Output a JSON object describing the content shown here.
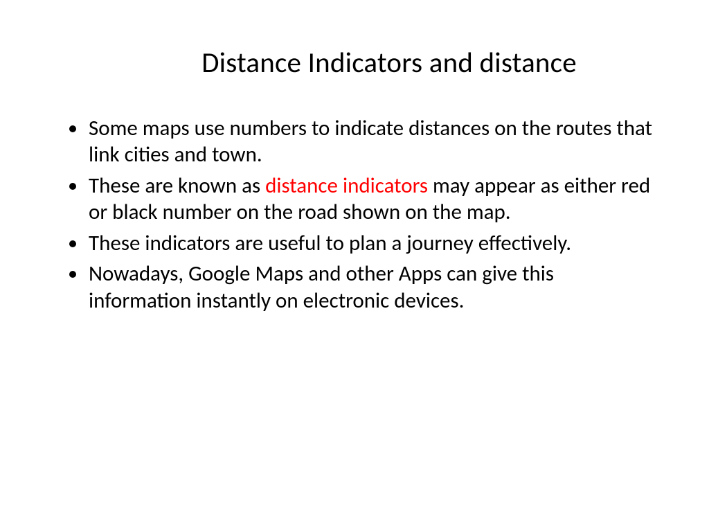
{
  "slide": {
    "title": "Distance Indicators and distance",
    "title_fontsize": 41,
    "title_color": "#000000",
    "background_color": "#ffffff",
    "body_fontsize": 31,
    "body_color": "#000000",
    "highlight_color": "#ff0000",
    "bullets": [
      {
        "pre": "Some maps use numbers to indicate distances on the routes that link cities and town.",
        "highlight": "",
        "post": ""
      },
      {
        "pre": "These are known as ",
        "highlight": "distance indicators",
        "post": " may appear as either red or black number on the road shown on the map."
      },
      {
        "pre": "These indicators are useful to plan a journey effectively.",
        "highlight": "",
        "post": ""
      },
      {
        "pre": "Nowadays, Google Maps and other Apps can give this information instantly on electronic devices.",
        "highlight": "",
        "post": ""
      }
    ]
  }
}
